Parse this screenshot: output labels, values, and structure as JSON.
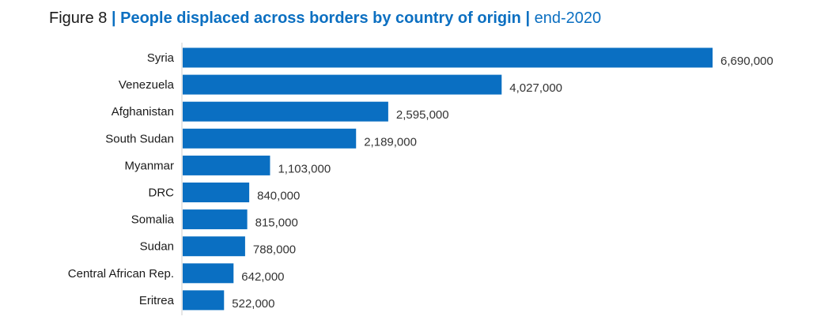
{
  "colors": {
    "bar": "#0a6fc2",
    "title_accent": "#0b6fc1",
    "axis": "#cccccc"
  },
  "chart_data": {
    "type": "bar",
    "orientation": "horizontal",
    "title_prefix": "Figure 8",
    "title_separator": "|",
    "title": "People displaced across borders by country of origin",
    "subtitle": "end-2020",
    "categories": [
      "Syria",
      "Venezuela",
      "Afghanistan",
      "South Sudan",
      "Myanmar",
      "DRC",
      "Somalia",
      "Sudan",
      "Central African Rep.",
      "Eritrea"
    ],
    "values": [
      6690000,
      4027000,
      2595000,
      2189000,
      1103000,
      840000,
      815000,
      788000,
      642000,
      522000
    ],
    "value_labels": [
      "6,690,000",
      "4,027,000",
      "2,595,000",
      "2,189,000",
      "1,103,000",
      "840,000",
      "815,000",
      "788,000",
      "642,000",
      "522,000"
    ],
    "xlim": [
      0,
      6690000
    ],
    "xlabel": "",
    "ylabel": "",
    "grid": false,
    "legend": "none"
  }
}
